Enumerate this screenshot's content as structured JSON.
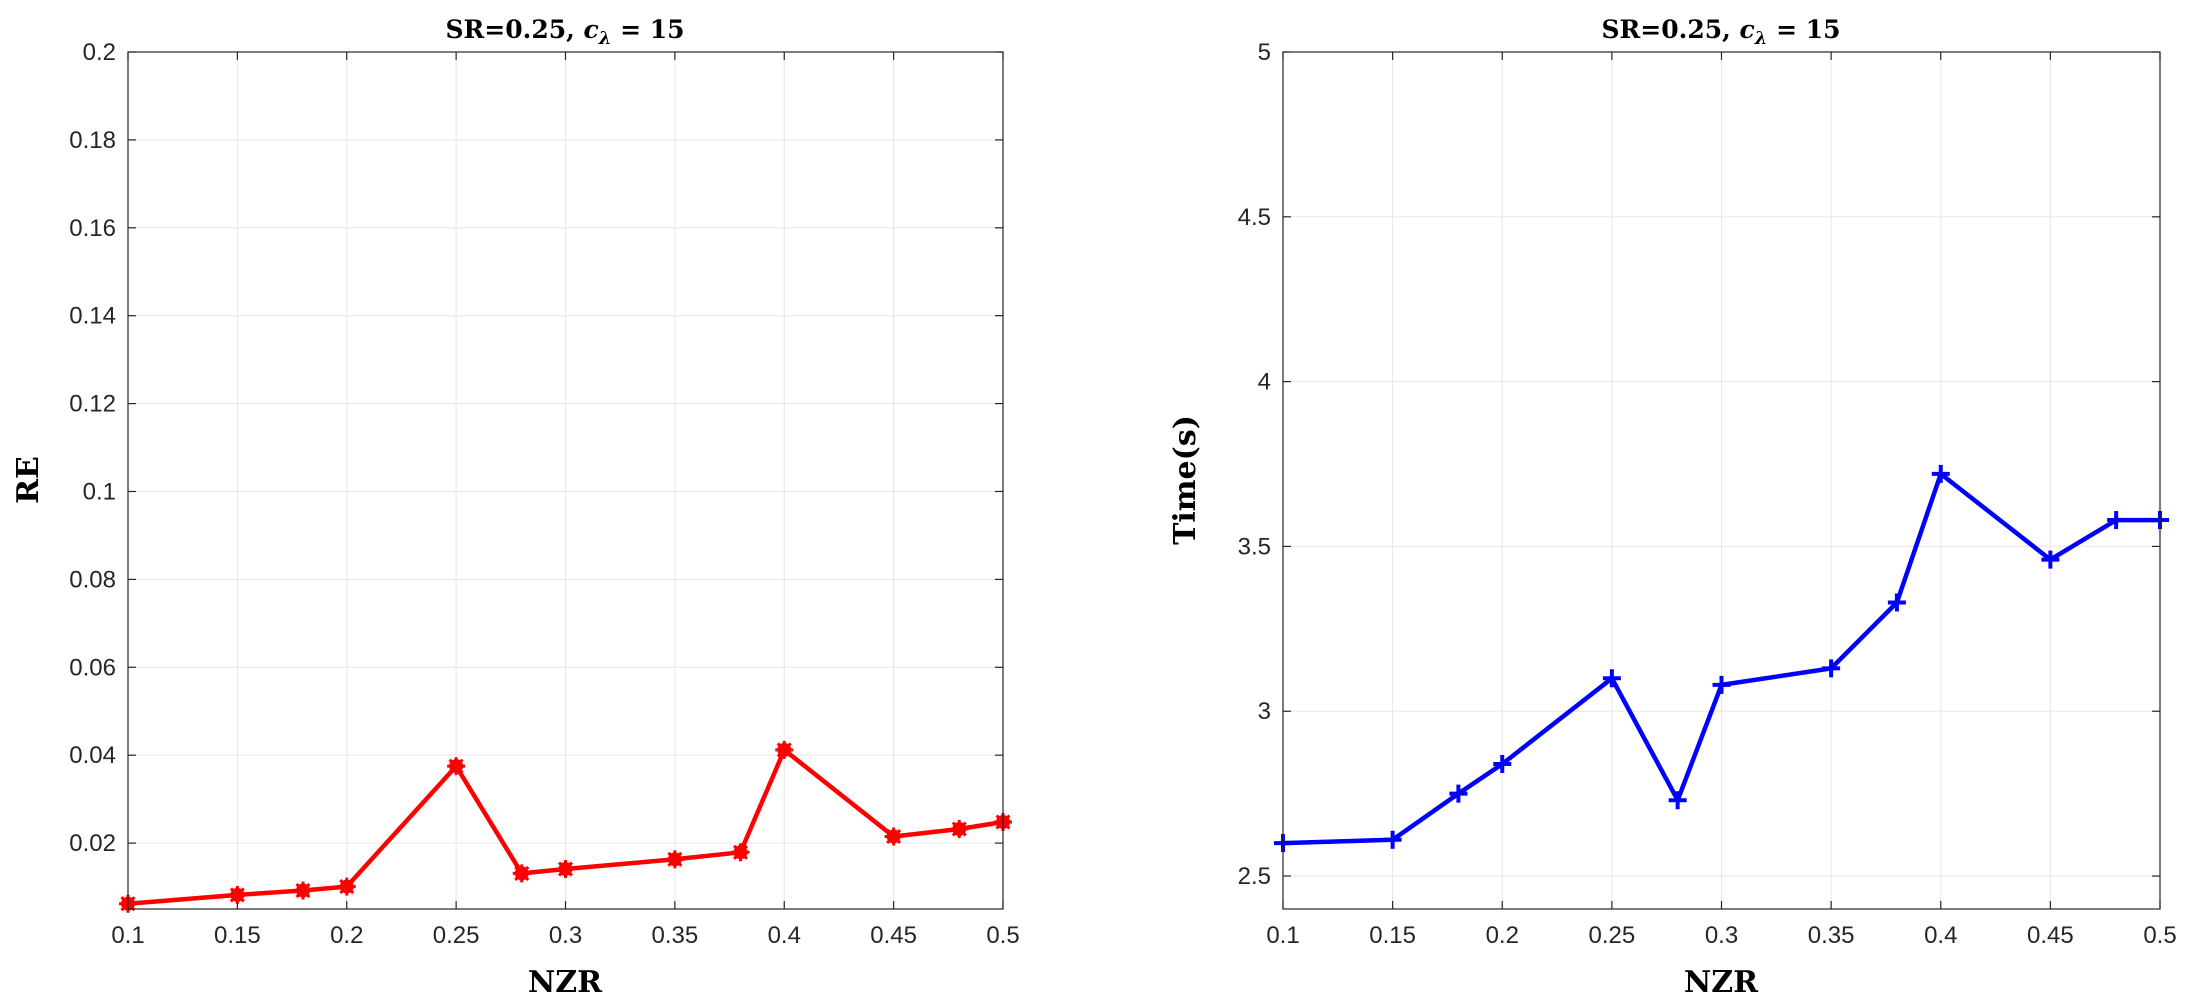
{
  "chart_data": [
    {
      "type": "line",
      "title": "SR=0.25, ",
      "title_math_var": "c",
      "title_math_sub": "λ",
      "title_math_rest": " = 15",
      "xlabel": "NZR",
      "ylabel": "RE",
      "xlim": [
        0.1,
        0.5
      ],
      "ylim": [
        0.005,
        0.2
      ],
      "grid": true,
      "x_ticks": [
        "0.1",
        "0.15",
        "0.2",
        "0.25",
        "0.3",
        "0.35",
        "0.4",
        "0.45",
        "0.5"
      ],
      "y_ticks": [
        "0.02",
        "0.04",
        "0.06",
        "0.08",
        "0.1",
        "0.12",
        "0.14",
        "0.16",
        "0.18",
        "0.2"
      ],
      "series": [
        {
          "color": "#ff0000",
          "marker": "asterisk",
          "x": [
            0.1,
            0.15,
            0.18,
            0.2,
            0.25,
            0.28,
            0.3,
            0.35,
            0.38,
            0.4,
            0.45,
            0.48,
            0.5
          ],
          "y": [
            0.0062,
            0.0082,
            0.0092,
            0.0101,
            0.0375,
            0.0131,
            0.0141,
            0.0163,
            0.0179,
            0.0412,
            0.0215,
            0.0232,
            0.0248
          ]
        }
      ]
    },
    {
      "type": "line",
      "title": "SR=0.25, ",
      "title_math_var": "c",
      "title_math_sub": "λ",
      "title_math_rest": " = 15",
      "xlabel": "NZR",
      "ylabel": "Time(s)",
      "xlim": [
        0.1,
        0.5
      ],
      "ylim": [
        2.4,
        5
      ],
      "grid": true,
      "x_ticks": [
        "0.1",
        "0.15",
        "0.2",
        "0.25",
        "0.3",
        "0.35",
        "0.4",
        "0.45",
        "0.5"
      ],
      "y_ticks": [
        "2.5",
        "3",
        "3.5",
        "4",
        "4.5",
        "5"
      ],
      "series": [
        {
          "color": "#0000ff",
          "marker": "plus",
          "x": [
            0.1,
            0.15,
            0.18,
            0.2,
            0.25,
            0.28,
            0.3,
            0.35,
            0.38,
            0.4,
            0.45,
            0.48,
            0.5
          ],
          "y": [
            2.6,
            2.61,
            2.75,
            2.84,
            3.1,
            2.73,
            3.08,
            3.13,
            3.33,
            3.72,
            3.46,
            3.58,
            3.58
          ]
        }
      ]
    }
  ]
}
